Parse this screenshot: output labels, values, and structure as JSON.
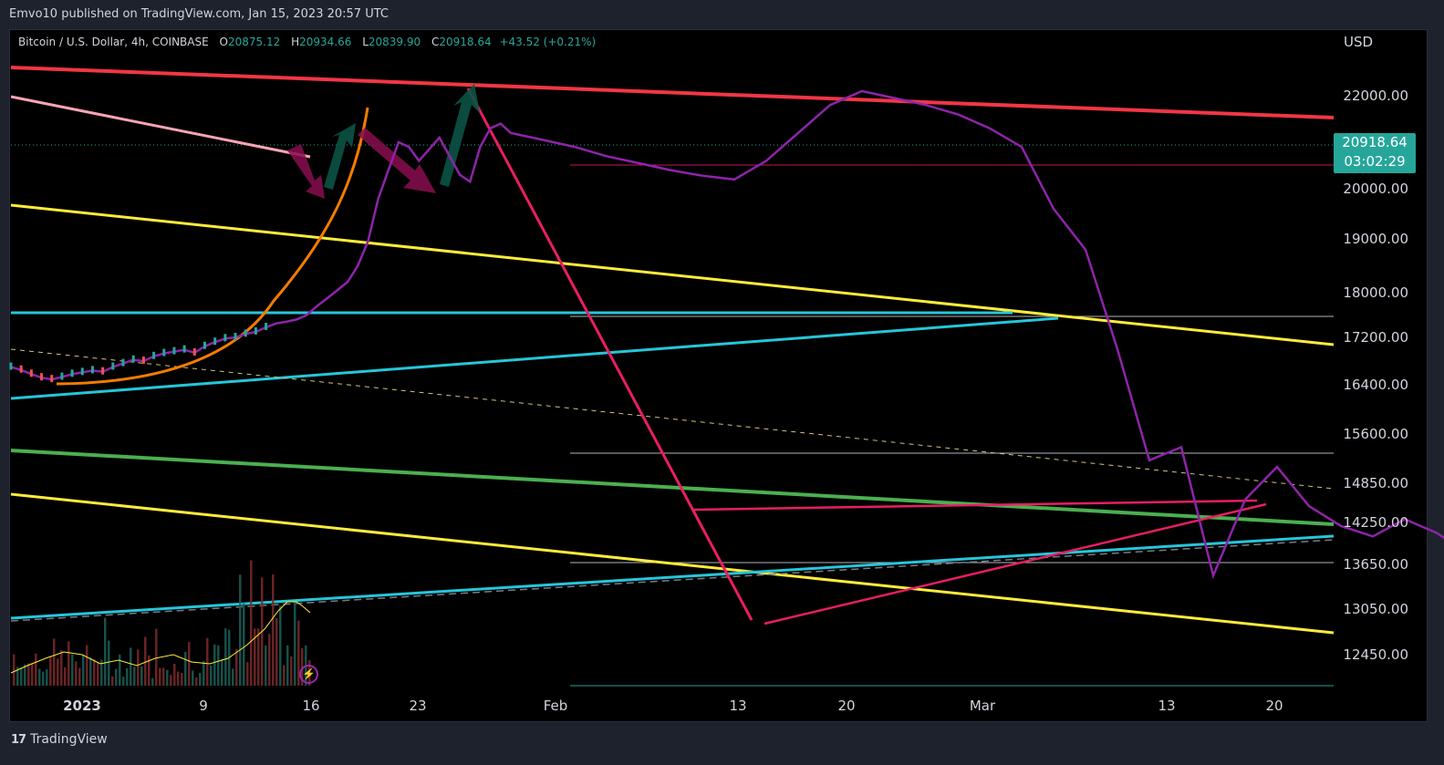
{
  "published": "Emvo10 published on TradingView.com, Jan 15, 2023 20:57 UTC",
  "legend": {
    "symbol": "Bitcoin / U.S. Dollar, 4h, COINBASE",
    "o_label": "O",
    "o_value": "20875.12",
    "h_label": "H",
    "h_value": "20934.66",
    "l_label": "L",
    "l_value": "20839.90",
    "c_label": "C",
    "c_value": "20918.64",
    "change": "+43.52 (+0.21%)"
  },
  "currency": "USD",
  "price_tag": {
    "price": "20918.64",
    "countdown": "03:02:29"
  },
  "footer": {
    "logo": "17",
    "brand": "TradingView"
  },
  "colors": {
    "background": "#000000",
    "panel": "#1e222d",
    "up": "#26a69a",
    "price_line": "#8e24aa",
    "red_trend": "#f23645",
    "yellow_trend": "#ffeb3b",
    "cyan_trend": "#26c6da",
    "green_trend": "#4caf50",
    "pink_trend": "#e91e63",
    "orange_curve": "#f57c00"
  },
  "icons": [
    "lightning-bolt-icon",
    "tradingview-logo-icon"
  ],
  "chart_data": {
    "type": "line",
    "title": "Bitcoin / U.S. Dollar, 4h, COINBASE",
    "xlabel": "",
    "ylabel": "",
    "y_ticks": [
      "22000.00",
      "20000.00",
      "19000.00",
      "18000.00",
      "17200.00",
      "16400.00",
      "15600.00",
      "14850.00",
      "14250.00",
      "13650.00",
      "13050.00",
      "12450.00"
    ],
    "x_ticks": [
      "2023",
      "9",
      "16",
      "23",
      "Feb",
      "13",
      "20",
      "Mar",
      "13",
      "20"
    ],
    "ylim": [
      12100,
      22500
    ],
    "grid": false,
    "series": [
      {
        "x": [
          0,
          4,
          8,
          12,
          16,
          20,
          24,
          28,
          32,
          36,
          40,
          44,
          48,
          52,
          56,
          60,
          64,
          68,
          72,
          76,
          80,
          84,
          88,
          92,
          96,
          100,
          104,
          108,
          112,
          116,
          120,
          124,
          128,
          132,
          136,
          140,
          144,
          148,
          152,
          156,
          160,
          164,
          168,
          172,
          176,
          180,
          184,
          188,
          192,
          196,
          200,
          204,
          208,
          212,
          216,
          220,
          224,
          228,
          232,
          236,
          240,
          244,
          248,
          252,
          256,
          260,
          264,
          268,
          272,
          276,
          280,
          284,
          288,
          292,
          296,
          300,
          304,
          308,
          312,
          316,
          320,
          324,
          328,
          332,
          336,
          340,
          344,
          348
        ],
        "values": [
          16700,
          16650,
          16580,
          16520,
          16490,
          16530,
          16580,
          16610,
          16640,
          16620,
          16700,
          16760,
          16820,
          16800,
          16880,
          16930,
          16960,
          16990,
          16940,
          17050,
          17120,
          17180,
          17200,
          17260,
          17300,
          17380,
          17450,
          17480,
          17520,
          17600,
          17760,
          17900,
          18050,
          18200,
          18500,
          18950,
          19800,
          20400,
          21000,
          20900,
          20600,
          20850,
          21100,
          20700,
          20300,
          20150,
          20900,
          21300,
          21400,
          21200,
          21050,
          20900,
          20700,
          20550,
          20400,
          20280,
          20200,
          20600,
          21200,
          21800,
          22100,
          21950,
          21800,
          21600,
          21300,
          20900,
          19600,
          18800,
          17000,
          15200,
          15400,
          13500,
          14600,
          15100,
          14500,
          14200,
          14050,
          14300,
          14100,
          13800,
          14350,
          14450,
          14200,
          14050,
          14150,
          14450,
          14200,
          14300
        ]
      }
    ]
  }
}
